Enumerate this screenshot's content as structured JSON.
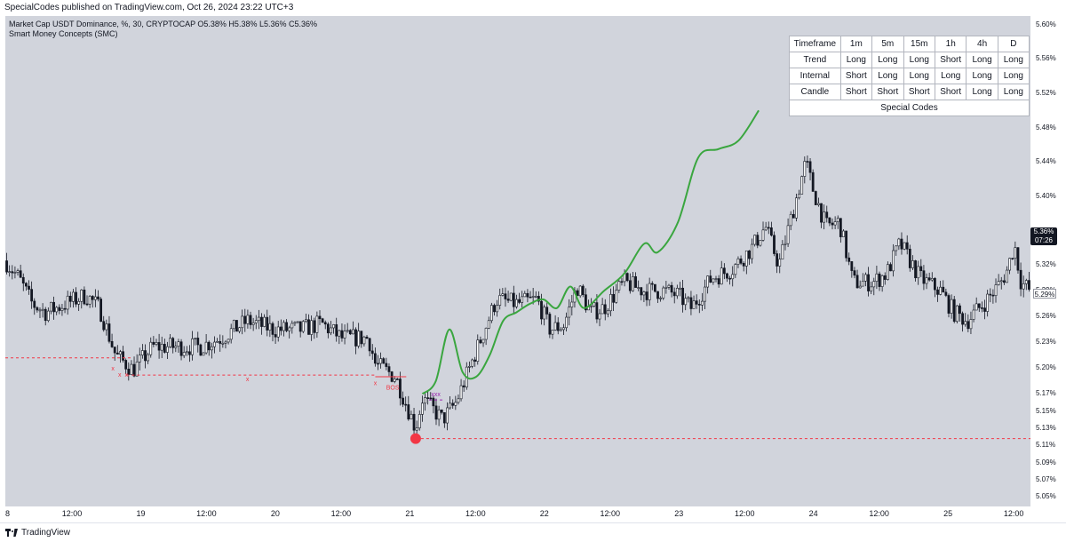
{
  "header": {
    "publisher_line": "SpecialCodes published on TradingView.com, Oct 26, 2024 23:22 UTC+3"
  },
  "legend": {
    "symbol_line": "Market Cap USDT Dominance, %, 30, CRYPTOCAP  O5.38%  H5.38%  L5.36%  C5.36%",
    "indicator_line": "Smart Money Concepts (SMC)"
  },
  "scale_button": "%",
  "price_tag": {
    "value": "5.36%",
    "countdown": "07:26"
  },
  "secondary_tag": "5.29%",
  "footer": {
    "brand": "TradingView"
  },
  "dashboard": {
    "header": [
      "Timeframe",
      "1m",
      "5m",
      "15m",
      "1h",
      "4h",
      "D"
    ],
    "rows": [
      {
        "label": "Trend",
        "cells": [
          {
            "text": "Long",
            "signal": "long"
          },
          {
            "text": "Long",
            "signal": "long"
          },
          {
            "text": "Long",
            "signal": "long"
          },
          {
            "text": "Short",
            "signal": "short"
          },
          {
            "text": "Long",
            "signal": "long"
          },
          {
            "text": "Long",
            "signal": "long"
          }
        ]
      },
      {
        "label": "Internal",
        "cells": [
          {
            "text": "Short",
            "signal": "short"
          },
          {
            "text": "Long",
            "signal": "long"
          },
          {
            "text": "Long",
            "signal": "long"
          },
          {
            "text": "Long",
            "signal": "long"
          },
          {
            "text": "Long",
            "signal": "long"
          },
          {
            "text": "Long",
            "signal": "long"
          }
        ]
      },
      {
        "label": "Candle",
        "cells": [
          {
            "text": "Short",
            "signal": "short"
          },
          {
            "text": "Short",
            "signal": "short"
          },
          {
            "text": "Short",
            "signal": "short"
          },
          {
            "text": "Short",
            "signal": "short"
          },
          {
            "text": "Long",
            "signal": "long"
          },
          {
            "text": "Long",
            "signal": "long"
          }
        ]
      }
    ],
    "footer": "Special Codes"
  },
  "chart_data": {
    "type": "candlestick",
    "colors": {
      "background": "#d1d4dc",
      "candle": "#131722",
      "projection": "#3aa63f",
      "smc": "#f23645",
      "internal": "#9c27b0"
    },
    "y_range": [
      5.04,
      5.61
    ],
    "y_ticks": [
      "5.05%",
      "5.07%",
      "5.09%",
      "5.11%",
      "5.13%",
      "5.15%",
      "5.17%",
      "5.20%",
      "5.23%",
      "5.26%",
      "5.29%",
      "5.32%",
      "5.36%",
      "5.40%",
      "5.44%",
      "5.48%",
      "5.52%",
      "5.56%",
      "5.60%"
    ],
    "y_tick_values": [
      5.05,
      5.07,
      5.09,
      5.11,
      5.13,
      5.15,
      5.17,
      5.2,
      5.23,
      5.26,
      5.29,
      5.32,
      5.36,
      5.4,
      5.44,
      5.48,
      5.52,
      5.56,
      5.6
    ],
    "x_range": [
      0,
      7.62
    ],
    "x_ticks": [
      {
        "label": "8",
        "pos": 0.0
      },
      {
        "label": "12:00",
        "pos": 0.5
      },
      {
        "label": "19",
        "pos": 1.0
      },
      {
        "label": "12:00",
        "pos": 1.5
      },
      {
        "label": "20",
        "pos": 2.0
      },
      {
        "label": "12:00",
        "pos": 2.5
      },
      {
        "label": "21",
        "pos": 3.0
      },
      {
        "label": "12:00",
        "pos": 3.5
      },
      {
        "label": "22",
        "pos": 4.0
      },
      {
        "label": "12:00",
        "pos": 4.5
      },
      {
        "label": "23",
        "pos": 5.0
      },
      {
        "label": "12:00",
        "pos": 5.5
      },
      {
        "label": "24",
        "pos": 6.0
      },
      {
        "label": "12:00",
        "pos": 6.5
      },
      {
        "label": "25",
        "pos": 7.0
      },
      {
        "label": "12:00",
        "pos": 7.5
      }
    ],
    "price_path": [
      [
        0.0,
        5.325
      ],
      [
        0.1,
        5.305
      ],
      [
        0.2,
        5.275
      ],
      [
        0.3,
        5.265
      ],
      [
        0.45,
        5.275
      ],
      [
        0.6,
        5.285
      ],
      [
        0.7,
        5.27
      ],
      [
        0.82,
        5.215
      ],
      [
        0.95,
        5.198
      ],
      [
        1.1,
        5.225
      ],
      [
        1.25,
        5.225
      ],
      [
        1.45,
        5.225
      ],
      [
        1.6,
        5.235
      ],
      [
        1.8,
        5.255
      ],
      [
        2.0,
        5.245
      ],
      [
        2.2,
        5.245
      ],
      [
        2.35,
        5.252
      ],
      [
        2.5,
        5.235
      ],
      [
        2.7,
        5.235
      ],
      [
        2.75,
        5.205
      ],
      [
        2.9,
        5.19
      ],
      [
        3.0,
        5.15
      ],
      [
        3.05,
        5.13
      ],
      [
        3.1,
        5.165
      ],
      [
        3.25,
        5.14
      ],
      [
        3.35,
        5.16
      ],
      [
        3.45,
        5.2
      ],
      [
        3.55,
        5.24
      ],
      [
        3.65,
        5.28
      ],
      [
        3.8,
        5.275
      ],
      [
        3.95,
        5.28
      ],
      [
        4.05,
        5.245
      ],
      [
        4.15,
        5.25
      ],
      [
        4.25,
        5.295
      ],
      [
        4.35,
        5.265
      ],
      [
        4.45,
        5.27
      ],
      [
        4.6,
        5.3
      ],
      [
        4.75,
        5.29
      ],
      [
        4.9,
        5.29
      ],
      [
        5.0,
        5.285
      ],
      [
        5.1,
        5.27
      ],
      [
        5.25,
        5.305
      ],
      [
        5.4,
        5.315
      ],
      [
        5.55,
        5.34
      ],
      [
        5.65,
        5.365
      ],
      [
        5.75,
        5.32
      ],
      [
        5.85,
        5.38
      ],
      [
        5.95,
        5.44
      ],
      [
        6.0,
        5.41
      ],
      [
        6.1,
        5.365
      ],
      [
        6.2,
        5.37
      ],
      [
        6.3,
        5.3
      ],
      [
        6.45,
        5.3
      ],
      [
        6.55,
        5.31
      ],
      [
        6.65,
        5.345
      ],
      [
        6.8,
        5.305
      ],
      [
        6.95,
        5.29
      ],
      [
        7.05,
        5.265
      ],
      [
        7.15,
        5.255
      ],
      [
        7.3,
        5.28
      ],
      [
        7.4,
        5.3
      ],
      [
        7.45,
        5.315
      ],
      [
        7.5,
        5.345
      ],
      [
        7.55,
        5.3
      ],
      [
        7.62,
        5.29
      ]
    ],
    "projection_curve": [
      [
        3.1,
        5.17
      ],
      [
        3.2,
        5.185
      ],
      [
        3.3,
        5.245
      ],
      [
        3.4,
        5.195
      ],
      [
        3.5,
        5.19
      ],
      [
        3.6,
        5.215
      ],
      [
        3.7,
        5.255
      ],
      [
        3.8,
        5.265
      ],
      [
        3.9,
        5.275
      ],
      [
        4.0,
        5.28
      ],
      [
        4.1,
        5.27
      ],
      [
        4.2,
        5.295
      ],
      [
        4.3,
        5.27
      ],
      [
        4.45,
        5.29
      ],
      [
        4.6,
        5.31
      ],
      [
        4.75,
        5.345
      ],
      [
        4.85,
        5.335
      ],
      [
        5.0,
        5.37
      ],
      [
        5.15,
        5.445
      ],
      [
        5.3,
        5.455
      ],
      [
        5.45,
        5.465
      ],
      [
        5.6,
        5.5
      ]
    ],
    "horizontal_levels": [
      {
        "y": 5.212,
        "x_from": 0.0,
        "x_to": 0.95,
        "style": "dashed",
        "role": "smc"
      },
      {
        "y": 5.192,
        "x_from": 0.9,
        "x_to": 2.75,
        "style": "dashed",
        "role": "smc"
      },
      {
        "y": 5.118,
        "x_from": 3.05,
        "x_to": 7.62,
        "style": "dashed",
        "role": "smc"
      },
      {
        "y": 5.19,
        "x_from": 2.75,
        "x_to": 2.98,
        "style": "solid",
        "role": "smc"
      },
      {
        "y": 5.163,
        "x_from": 3.15,
        "x_to": 3.25,
        "style": "dashed",
        "role": "internal"
      }
    ],
    "markers": [
      {
        "text": "x",
        "x": 0.8,
        "y": 5.197
      },
      {
        "text": "x",
        "x": 0.85,
        "y": 5.19
      },
      {
        "text": "x",
        "x": 0.9,
        "y": 5.19
      },
      {
        "text": "x",
        "x": 1.8,
        "y": 5.185
      },
      {
        "text": "x",
        "x": 2.75,
        "y": 5.18
      }
    ],
    "labels": [
      {
        "text": "BOS",
        "x": 2.88,
        "y": 5.175,
        "role": "smc"
      },
      {
        "text": "xxx",
        "x": 3.2,
        "y": 5.167,
        "role": "internal"
      }
    ],
    "low_point": {
      "x": 3.05,
      "y": 5.118
    }
  }
}
